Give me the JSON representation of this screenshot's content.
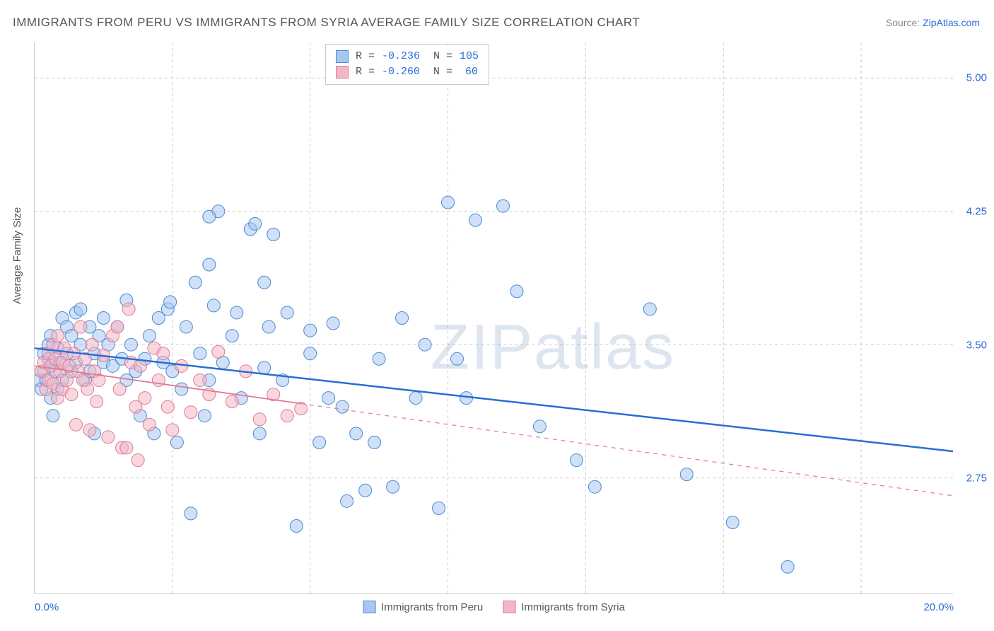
{
  "title": "IMMIGRANTS FROM PERU VS IMMIGRANTS FROM SYRIA AVERAGE FAMILY SIZE CORRELATION CHART",
  "source_label": "Source:",
  "source_name": "ZipAtlas.com",
  "y_axis_title": "Average Family Size",
  "watermark": "ZIPatlas",
  "chart": {
    "type": "scatter",
    "xlim": [
      0,
      20
    ],
    "ylim": [
      2.1,
      5.2
    ],
    "x_ticks": [
      {
        "pos": 0,
        "label": "0.0%"
      },
      {
        "pos": 20,
        "label": "20.0%"
      }
    ],
    "x_minor_ticks": [
      3.0,
      6.0,
      9.0,
      12.0,
      15.0,
      18.0
    ],
    "y_ticks": [
      2.75,
      3.5,
      4.25,
      5.0
    ],
    "background_color": "#ffffff",
    "grid_color": "#cccccc",
    "series": [
      {
        "id": "peru",
        "name": "Immigrants from Peru",
        "fill": "#a7c7f0",
        "stroke": "#4a8ad4",
        "fill_opacity": 0.55,
        "marker_radius": 9,
        "R": "-0.236",
        "N": "105",
        "regression": {
          "x1": 0,
          "y1": 3.48,
          "x2": 20,
          "y2": 2.9,
          "solid_until_x": 20,
          "color": "#2a6cd6",
          "width": 2.5
        },
        "points": [
          [
            0.1,
            3.3
          ],
          [
            0.15,
            3.25
          ],
          [
            0.2,
            3.35
          ],
          [
            0.2,
            3.45
          ],
          [
            0.25,
            3.3
          ],
          [
            0.3,
            3.42
          ],
          [
            0.3,
            3.5
          ],
          [
            0.35,
            3.2
          ],
          [
            0.35,
            3.55
          ],
          [
            0.4,
            3.4
          ],
          [
            0.4,
            3.1
          ],
          [
            0.45,
            3.35
          ],
          [
            0.5,
            3.48
          ],
          [
            0.5,
            3.25
          ],
          [
            0.55,
            3.4
          ],
          [
            0.6,
            3.65
          ],
          [
            0.6,
            3.3
          ],
          [
            0.7,
            3.45
          ],
          [
            0.7,
            3.6
          ],
          [
            0.8,
            3.55
          ],
          [
            0.8,
            3.35
          ],
          [
            0.9,
            3.68
          ],
          [
            0.9,
            3.4
          ],
          [
            1.0,
            3.5
          ],
          [
            1.0,
            3.7
          ],
          [
            1.1,
            3.3
          ],
          [
            1.2,
            3.6
          ],
          [
            1.2,
            3.35
          ],
          [
            1.3,
            3.45
          ],
          [
            1.3,
            3.0
          ],
          [
            1.4,
            3.55
          ],
          [
            1.5,
            3.4
          ],
          [
            1.5,
            3.65
          ],
          [
            1.6,
            3.5
          ],
          [
            1.7,
            3.38
          ],
          [
            1.8,
            3.6
          ],
          [
            1.9,
            3.42
          ],
          [
            2.0,
            3.3
          ],
          [
            2.0,
            3.75
          ],
          [
            2.1,
            3.5
          ],
          [
            2.2,
            3.35
          ],
          [
            2.3,
            3.1
          ],
          [
            2.4,
            3.42
          ],
          [
            2.5,
            3.55
          ],
          [
            2.6,
            3.0
          ],
          [
            2.7,
            3.65
          ],
          [
            2.8,
            3.4
          ],
          [
            2.9,
            3.7
          ],
          [
            3.0,
            3.35
          ],
          [
            3.1,
            2.95
          ],
          [
            3.2,
            3.25
          ],
          [
            3.3,
            3.6
          ],
          [
            3.4,
            2.55
          ],
          [
            3.5,
            3.85
          ],
          [
            3.6,
            3.45
          ],
          [
            3.7,
            3.1
          ],
          [
            3.8,
            3.3
          ],
          [
            3.9,
            3.72
          ],
          [
            4.0,
            4.25
          ],
          [
            4.1,
            3.4
          ],
          [
            4.3,
            3.55
          ],
          [
            4.5,
            3.2
          ],
          [
            4.7,
            4.15
          ],
          [
            4.8,
            4.18
          ],
          [
            4.9,
            3.0
          ],
          [
            5.0,
            3.85
          ],
          [
            5.1,
            3.6
          ],
          [
            5.2,
            4.12
          ],
          [
            5.4,
            3.3
          ],
          [
            5.5,
            3.68
          ],
          [
            5.7,
            2.48
          ],
          [
            6.0,
            3.45
          ],
          [
            6.2,
            2.95
          ],
          [
            6.4,
            3.2
          ],
          [
            6.5,
            3.62
          ],
          [
            6.8,
            2.62
          ],
          [
            7.0,
            3.0
          ],
          [
            7.2,
            2.68
          ],
          [
            7.4,
            2.95
          ],
          [
            7.5,
            3.42
          ],
          [
            7.8,
            2.7
          ],
          [
            8.0,
            3.65
          ],
          [
            8.3,
            3.2
          ],
          [
            8.5,
            3.5
          ],
          [
            8.8,
            2.58
          ],
          [
            9.0,
            4.3
          ],
          [
            9.2,
            3.42
          ],
          [
            9.4,
            3.2
          ],
          [
            9.6,
            4.2
          ],
          [
            10.2,
            4.28
          ],
          [
            10.5,
            3.8
          ],
          [
            11.0,
            3.04
          ],
          [
            11.8,
            2.85
          ],
          [
            12.2,
            2.7
          ],
          [
            13.4,
            3.7
          ],
          [
            14.2,
            2.77
          ],
          [
            15.2,
            2.5
          ],
          [
            16.4,
            2.25
          ],
          [
            3.8,
            4.22
          ],
          [
            2.95,
            3.74
          ],
          [
            3.8,
            3.95
          ],
          [
            4.4,
            3.68
          ],
          [
            5.0,
            3.37
          ],
          [
            6.0,
            3.58
          ],
          [
            6.7,
            3.15
          ]
        ]
      },
      {
        "id": "syria",
        "name": "Immigrants from Syria",
        "fill": "#f3b7c5",
        "stroke": "#e37893",
        "fill_opacity": 0.55,
        "marker_radius": 9,
        "R": "-0.260",
        "N": "60",
        "regression": {
          "x1": 0,
          "y1": 3.38,
          "x2": 20,
          "y2": 2.65,
          "solid_until_x": 5.8,
          "color": "#e37893",
          "width": 1.8
        },
        "points": [
          [
            0.15,
            3.35
          ],
          [
            0.2,
            3.4
          ],
          [
            0.25,
            3.25
          ],
          [
            0.3,
            3.45
          ],
          [
            0.3,
            3.3
          ],
          [
            0.35,
            3.38
          ],
          [
            0.4,
            3.5
          ],
          [
            0.4,
            3.28
          ],
          [
            0.45,
            3.42
          ],
          [
            0.5,
            3.2
          ],
          [
            0.5,
            3.55
          ],
          [
            0.55,
            3.35
          ],
          [
            0.6,
            3.4
          ],
          [
            0.6,
            3.25
          ],
          [
            0.65,
            3.48
          ],
          [
            0.7,
            3.3
          ],
          [
            0.75,
            3.38
          ],
          [
            0.8,
            3.22
          ],
          [
            0.85,
            3.45
          ],
          [
            0.9,
            3.05
          ],
          [
            0.95,
            3.35
          ],
          [
            1.0,
            3.6
          ],
          [
            1.05,
            3.3
          ],
          [
            1.1,
            3.42
          ],
          [
            1.15,
            3.25
          ],
          [
            1.2,
            3.02
          ],
          [
            1.25,
            3.5
          ],
          [
            1.3,
            3.35
          ],
          [
            1.35,
            3.18
          ],
          [
            1.4,
            3.3
          ],
          [
            1.5,
            3.44
          ],
          [
            1.6,
            2.98
          ],
          [
            1.7,
            3.55
          ],
          [
            1.8,
            3.6
          ],
          [
            1.85,
            3.25
          ],
          [
            1.9,
            2.92
          ],
          [
            2.0,
            2.92
          ],
          [
            2.1,
            3.4
          ],
          [
            2.2,
            3.15
          ],
          [
            2.25,
            2.85
          ],
          [
            2.3,
            3.38
          ],
          [
            2.4,
            3.2
          ],
          [
            2.5,
            3.05
          ],
          [
            2.6,
            3.48
          ],
          [
            2.7,
            3.3
          ],
          [
            2.8,
            3.45
          ],
          [
            2.9,
            3.15
          ],
          [
            3.0,
            3.02
          ],
          [
            3.2,
            3.38
          ],
          [
            3.4,
            3.12
          ],
          [
            3.6,
            3.3
          ],
          [
            3.8,
            3.22
          ],
          [
            4.0,
            3.46
          ],
          [
            4.3,
            3.18
          ],
          [
            4.6,
            3.35
          ],
          [
            4.9,
            3.08
          ],
          [
            5.2,
            3.22
          ],
          [
            5.5,
            3.1
          ],
          [
            5.8,
            3.14
          ],
          [
            2.05,
            3.7
          ]
        ]
      }
    ]
  }
}
